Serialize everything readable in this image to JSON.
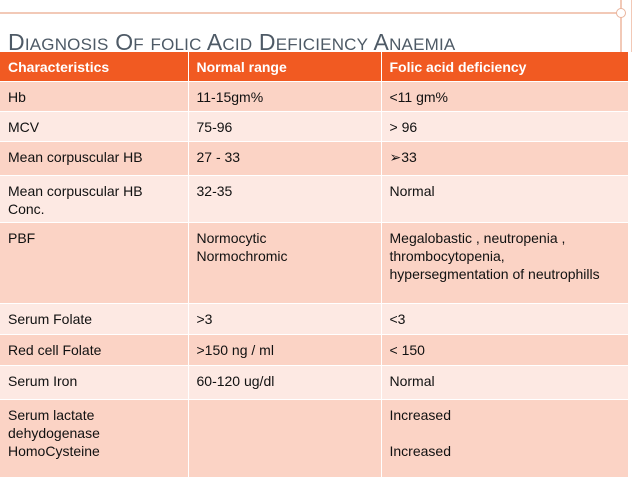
{
  "title": {
    "w1_cap": "D",
    "w1_rest": "IAGNOSIS",
    "w2_cap": "O",
    "w2_rest": "F",
    "w3": "FOLIC",
    "w4_cap": "A",
    "w4_rest": "CID",
    "w5_cap": "D",
    "w5_rest": "EFICIENCY",
    "w6_cap": "A",
    "w6_rest": "NAEMIA"
  },
  "table": {
    "headers": [
      "Characteristics",
      "Normal range",
      "Folic acid deficiency"
    ],
    "rows": [
      {
        "characteristic": [
          "Hb"
        ],
        "normal": [
          "11-15gm%"
        ],
        "deficiency": [
          "<11 gm%"
        ]
      },
      {
        "characteristic": [
          "MCV"
        ],
        "normal": [
          "75-96"
        ],
        "deficiency": [
          "> 96"
        ]
      },
      {
        "characteristic": [
          "Mean corpuscular HB"
        ],
        "normal": [
          " 27 - 33"
        ],
        "deficiency": [
          "➢33"
        ]
      },
      {
        "characteristic": [
          "Mean corpuscular HB",
          "Conc."
        ],
        "normal": [
          "32-35"
        ],
        "deficiency": [
          "Normal"
        ]
      },
      {
        "characteristic": [
          "PBF"
        ],
        "normal": [
          "Normocytic",
          "Normochromic"
        ],
        "deficiency": [
          "Megalobastic , neutropenia ,",
          "thrombocytopenia,",
          "hypersegmentation of neutrophills"
        ]
      },
      {
        "characteristic": [
          "Serum Folate"
        ],
        "normal": [
          ">3"
        ],
        "deficiency": [
          "<3"
        ]
      },
      {
        "characteristic": [
          "Red cell Folate"
        ],
        "normal": [
          ">150 ng / ml"
        ],
        "deficiency": [
          "< 150"
        ]
      },
      {
        "characteristic": [
          "Serum Iron"
        ],
        "normal": [
          "60-120 ug/dl"
        ],
        "deficiency": [
          "Normal"
        ]
      },
      {
        "characteristic": [
          "Serum lactate",
          "dehydogenase",
          "HomoCysteine"
        ],
        "normal": [],
        "deficiency": [
          "Increased",
          "",
          "Increased"
        ]
      }
    ]
  },
  "colors": {
    "header_bg": "#f15a22",
    "row_dark": "#fbd3c5",
    "row_light": "#fde9e3",
    "title_text": "#4e5a66"
  }
}
